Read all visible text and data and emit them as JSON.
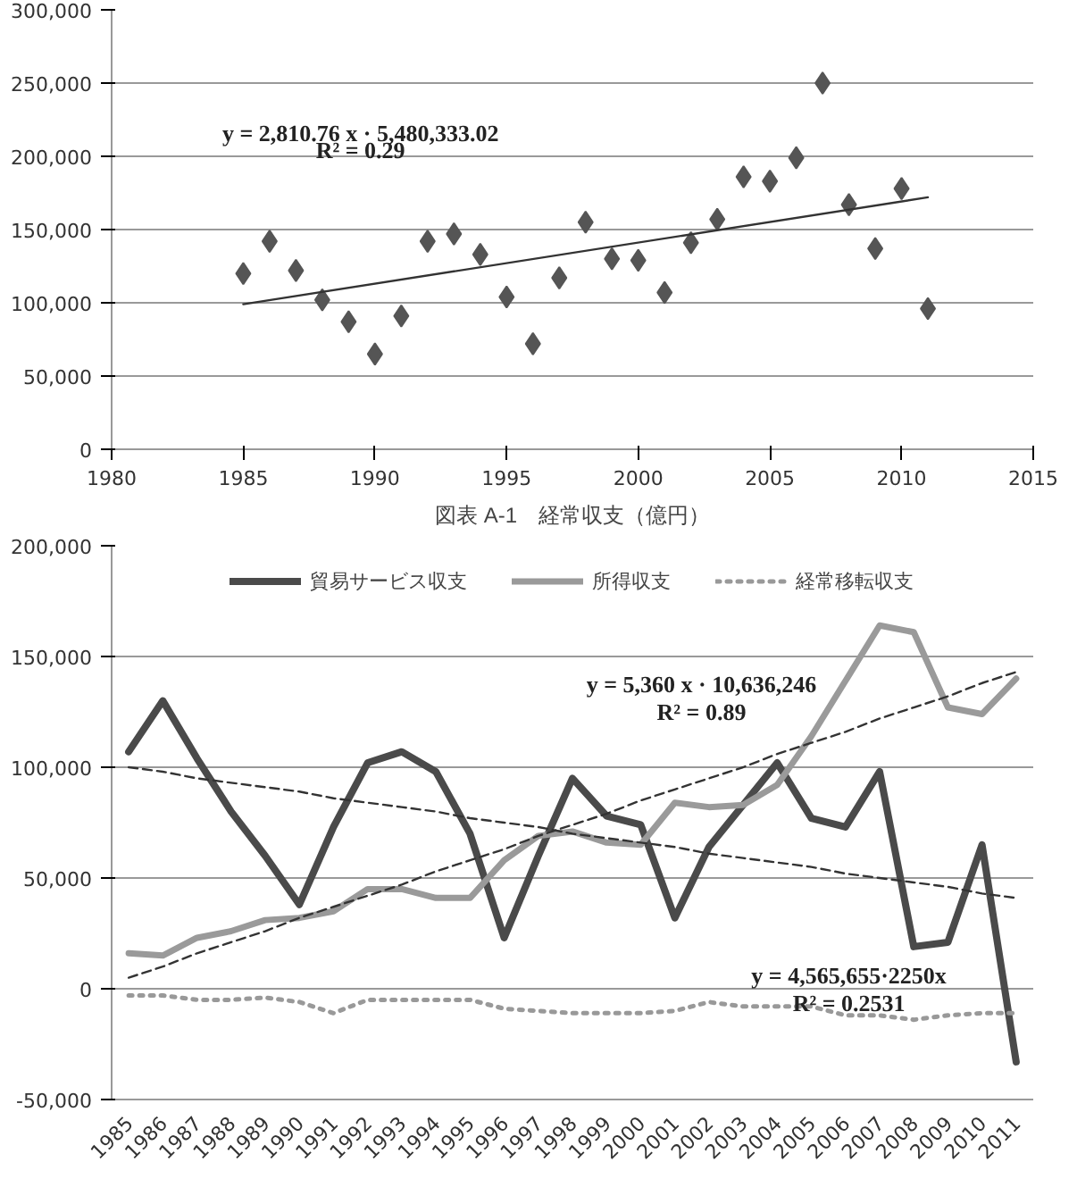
{
  "chart_data": [
    {
      "type": "scatter",
      "x": [
        1985,
        1986,
        1987,
        1988,
        1989,
        1990,
        1991,
        1992,
        1993,
        1994,
        1995,
        1996,
        1997,
        1998,
        1999,
        2000,
        2001,
        2002,
        2003,
        2004,
        2005,
        2006,
        2007,
        2008,
        2009,
        2010,
        2011
      ],
      "series": [
        {
          "color": "#555555",
          "marker": "diamond",
          "values": [
            120000,
            142000,
            122000,
            102000,
            87000,
            65000,
            91000,
            142000,
            147000,
            133000,
            104000,
            72000,
            117000,
            155000,
            130000,
            129000,
            107000,
            141000,
            157000,
            186000,
            183000,
            199000,
            250000,
            167000,
            137000,
            178000,
            96000
          ]
        },
        {
          "type": "line",
          "color": "#333333",
          "line_style": "solid",
          "x": [
            1985,
            2011
          ],
          "values": [
            99000,
            172000
          ]
        }
      ],
      "xlim": [
        1980,
        2015
      ],
      "xticks": [
        1980,
        1985,
        1990,
        1995,
        2000,
        2005,
        2010,
        2015
      ],
      "ylim": [
        0,
        300000
      ],
      "yticks": [
        {
          "value": 0,
          "label": "0"
        },
        {
          "value": 50000,
          "label": "50,000"
        },
        {
          "value": 100000,
          "label": "100,000"
        },
        {
          "value": 150000,
          "label": "150,000"
        },
        {
          "value": 200000,
          "label": "200,000"
        },
        {
          "value": 250000,
          "label": "250,000"
        },
        {
          "value": 300000,
          "label": "300,000"
        }
      ],
      "grid": "y",
      "legend": false,
      "annotations": [
        "y = 2,810.76 x · 5,480,333.02",
        "R² = 0.29",
        "図表 A-1　経常収支（億円）"
      ]
    },
    {
      "type": "line",
      "categories": [
        "1985",
        "1986",
        "1987",
        "1988",
        "1989",
        "1990",
        "1991",
        "1992",
        "1993",
        "1994",
        "1995",
        "1996",
        "1997",
        "1998",
        "1999",
        "2000",
        "2001",
        "2002",
        "2003",
        "2004",
        "2005",
        "2006",
        "2007",
        "2008",
        "2009",
        "2010",
        "2011"
      ],
      "series": [
        {
          "name": "貿易サービス収支",
          "color": "#4a4a4a",
          "line_style": "solid",
          "values": [
            107000,
            130000,
            104000,
            80000,
            60000,
            38000,
            73000,
            102000,
            107000,
            98000,
            70000,
            23000,
            60000,
            95000,
            78000,
            74000,
            32000,
            64000,
            83000,
            102000,
            77000,
            73000,
            98000,
            19000,
            21000,
            65000,
            -33000
          ]
        },
        {
          "name": "所得収支",
          "color": "#9a9a9a",
          "line_style": "solid",
          "values": [
            16000,
            15000,
            23000,
            26000,
            31000,
            32000,
            35000,
            45000,
            45000,
            41000,
            41000,
            58000,
            69000,
            71000,
            66000,
            65000,
            84000,
            82000,
            83000,
            92000,
            114000,
            139000,
            164000,
            161000,
            127000,
            124000,
            140000
          ]
        },
        {
          "name": "経常移転収支",
          "color": "#999999",
          "line_style": "dotted",
          "values": [
            -3000,
            -3000,
            -5000,
            -5000,
            -4000,
            -6000,
            -11000,
            -5000,
            -5000,
            -5000,
            -5000,
            -9000,
            -10000,
            -11000,
            -11000,
            -11000,
            -10000,
            -6000,
            -8000,
            -8000,
            -8000,
            -12000,
            -12000,
            -14000,
            -12000,
            -11000,
            -11000
          ]
        },
        {
          "type": "line",
          "color": "#333333",
          "line_style": "dashed",
          "values": [
            5000,
            10000,
            16000,
            21000,
            26000,
            32000,
            37000,
            42000,
            47000,
            53000,
            58000,
            63000,
            69000,
            74000,
            79000,
            85000,
            90000,
            95000,
            100000,
            106000,
            111000,
            116000,
            122000,
            127000,
            132000,
            138000,
            143000
          ]
        },
        {
          "type": "line",
          "color": "#333333",
          "line_style": "dashed",
          "values": [
            100000,
            98000,
            95000,
            93000,
            91000,
            89000,
            86000,
            84000,
            82000,
            80000,
            77000,
            75000,
            73000,
            70000,
            68000,
            66000,
            64000,
            61000,
            59000,
            57000,
            55000,
            52000,
            50000,
            48000,
            46000,
            43000,
            41000
          ]
        }
      ],
      "ylim": [
        -50000,
        200000
      ],
      "yticks": [
        {
          "value": -50000,
          "label": "-50,000"
        },
        {
          "value": 0,
          "label": "0"
        },
        {
          "value": 50000,
          "label": "50,000"
        },
        {
          "value": 100000,
          "label": "100,000"
        },
        {
          "value": 150000,
          "label": "150,000"
        },
        {
          "value": 200000,
          "label": "200,000"
        }
      ],
      "grid": "y",
      "legend": "top",
      "marker": "none",
      "annotations": [
        "y = 5,360 x · 10,636,246",
        "R² = 0.89",
        "y = 4,565,655·2250x",
        "R² = 0.2531"
      ]
    }
  ]
}
